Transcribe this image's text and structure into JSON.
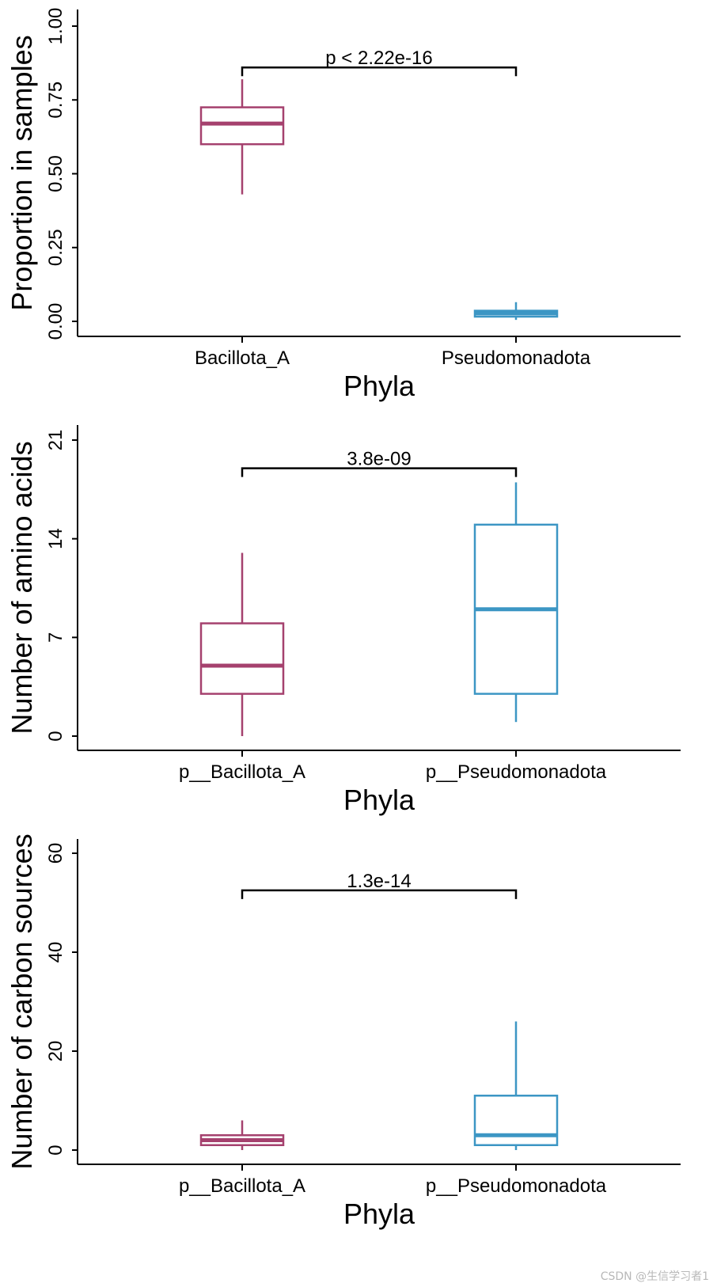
{
  "chart_data": [
    {
      "type": "box",
      "ylabel": "Proportion in samples",
      "xlabel": "Phyla",
      "categories": [
        "Bacillota_A",
        "Pseudomonadota"
      ],
      "ylim": [
        0,
        1
      ],
      "yticks": [
        0,
        0.25,
        0.5,
        0.75,
        1
      ],
      "ytick_labels": [
        "0.00",
        "0.25",
        "0.50",
        "0.75",
        "1.00"
      ],
      "series": [
        {
          "name": "Bacillota_A",
          "color": "#A5416E",
          "whisker_low": 0.43,
          "q1": 0.6,
          "median": 0.67,
          "q3": 0.725,
          "whisker_high": 0.82
        },
        {
          "name": "Pseudomonadota",
          "color": "#3C96C4",
          "whisker_low": 0.005,
          "q1": 0.016,
          "median": 0.027,
          "q3": 0.036,
          "whisker_high": 0.065
        }
      ],
      "comparison": {
        "label": "p < 2.22e-16",
        "y": 0.86
      }
    },
    {
      "type": "box",
      "ylabel": "Number of amino acids",
      "xlabel": "Phyla",
      "categories": [
        "p__Bacillota_A",
        "p__Pseudomonadota"
      ],
      "ylim": [
        0,
        21
      ],
      "yticks": [
        0,
        7,
        14,
        21
      ],
      "ytick_labels": [
        "0",
        "7",
        "14",
        "21"
      ],
      "series": [
        {
          "name": "p__Bacillota_A",
          "color": "#A5416E",
          "whisker_low": 0,
          "q1": 3,
          "median": 5,
          "q3": 8,
          "whisker_high": 13
        },
        {
          "name": "p__Pseudomonadota",
          "color": "#3C96C4",
          "whisker_low": 1,
          "q1": 3,
          "median": 9,
          "q3": 15,
          "whisker_high": 18
        }
      ],
      "comparison": {
        "label": "3.8e-09",
        "y": 19
      }
    },
    {
      "type": "box",
      "ylabel": "Number of carbon sources",
      "xlabel": "Phyla",
      "categories": [
        "p__Bacillota_A",
        "p__Pseudomonadota"
      ],
      "ylim": [
        0,
        60
      ],
      "yticks": [
        0,
        20,
        40,
        60
      ],
      "ytick_labels": [
        "0",
        "20",
        "40",
        "60"
      ],
      "series": [
        {
          "name": "p__Bacillota_A",
          "color": "#A5416E",
          "whisker_low": 0,
          "q1": 1,
          "median": 2,
          "q3": 3,
          "whisker_high": 6
        },
        {
          "name": "p__Pseudomonadota",
          "color": "#3C96C4",
          "whisker_low": 0,
          "q1": 1,
          "median": 3,
          "q3": 11,
          "whisker_high": 26
        }
      ],
      "comparison": {
        "label": "1.3e-14",
        "y": 52.5
      }
    }
  ],
  "watermark": "CSDN @生信学习者1"
}
